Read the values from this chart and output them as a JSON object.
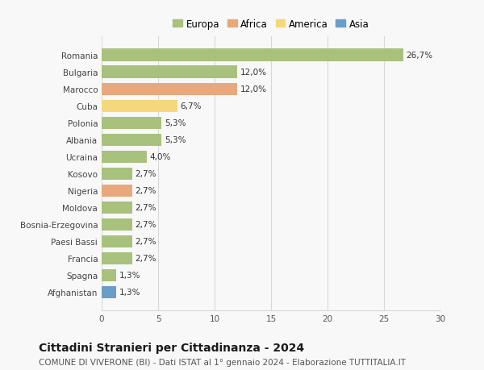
{
  "countries": [
    "Romania",
    "Bulgaria",
    "Marocco",
    "Cuba",
    "Polonia",
    "Albania",
    "Ucraina",
    "Kosovo",
    "Nigeria",
    "Moldova",
    "Bosnia-Erzegovina",
    "Paesi Bassi",
    "Francia",
    "Spagna",
    "Afghanistan"
  ],
  "values": [
    26.7,
    12.0,
    12.0,
    6.7,
    5.3,
    5.3,
    4.0,
    2.7,
    2.7,
    2.7,
    2.7,
    2.7,
    2.7,
    1.3,
    1.3
  ],
  "labels": [
    "26,7%",
    "12,0%",
    "12,0%",
    "6,7%",
    "5,3%",
    "5,3%",
    "4,0%",
    "2,7%",
    "2,7%",
    "2,7%",
    "2,7%",
    "2,7%",
    "2,7%",
    "1,3%",
    "1,3%"
  ],
  "continents": [
    "Europa",
    "Europa",
    "Africa",
    "America",
    "Europa",
    "Europa",
    "Europa",
    "Europa",
    "Africa",
    "Europa",
    "Europa",
    "Europa",
    "Europa",
    "Europa",
    "Asia"
  ],
  "continent_colors": {
    "Europa": "#a8c17c",
    "Africa": "#e8a87c",
    "America": "#f5d87c",
    "Asia": "#6a9dc8"
  },
  "legend_order": [
    "Europa",
    "Africa",
    "America",
    "Asia"
  ],
  "xlim": [
    0,
    30
  ],
  "xticks": [
    0,
    5,
    10,
    15,
    20,
    25,
    30
  ],
  "title": "Cittadini Stranieri per Cittadinanza - 2024",
  "subtitle": "COMUNE DI VIVERONE (BI) - Dati ISTAT al 1° gennaio 2024 - Elaborazione TUTTITALIA.IT",
  "background_color": "#f8f8f8",
  "grid_color": "#d8d8d8",
  "bar_height": 0.72,
  "title_fontsize": 10,
  "subtitle_fontsize": 7.5,
  "tick_fontsize": 7.5,
  "label_fontsize": 7.5,
  "legend_fontsize": 8.5
}
